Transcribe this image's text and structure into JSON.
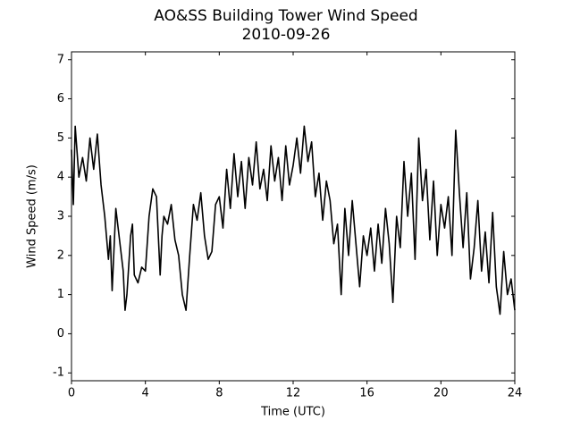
{
  "chart_data": {
    "type": "line",
    "title": "AO&SS Building Tower Wind Speed",
    "subtitle": "2010-09-26",
    "x_label": "Time (UTC)",
    "y_label": "Wind Speed (m/s)",
    "xlim": [
      0,
      24
    ],
    "xticks": [
      0,
      4,
      8,
      12,
      16,
      20,
      24
    ],
    "ylim": [
      -1.2,
      7.2
    ],
    "yticks": [
      -1,
      0,
      1,
      2,
      3,
      4,
      5,
      6,
      7
    ],
    "series": [
      {
        "name": "Wind Speed",
        "color": "#000000",
        "x": [
          0,
          0.1,
          0.2,
          0.4,
          0.6,
          0.8,
          1.0,
          1.2,
          1.4,
          1.6,
          1.8,
          2.0,
          2.1,
          2.2,
          2.4,
          2.6,
          2.8,
          2.9,
          3.0,
          3.2,
          3.3,
          3.4,
          3.6,
          3.8,
          4.0,
          4.2,
          4.4,
          4.6,
          4.8,
          4.9,
          5.0,
          5.2,
          5.4,
          5.6,
          5.8,
          6.0,
          6.2,
          6.4,
          6.6,
          6.8,
          7.0,
          7.2,
          7.4,
          7.6,
          7.8,
          8.0,
          8.2,
          8.4,
          8.6,
          8.8,
          9.0,
          9.2,
          9.4,
          9.6,
          9.8,
          10.0,
          10.2,
          10.4,
          10.6,
          10.8,
          11.0,
          11.2,
          11.4,
          11.6,
          11.8,
          12.0,
          12.2,
          12.4,
          12.6,
          12.8,
          13.0,
          13.2,
          13.4,
          13.6,
          13.8,
          14.0,
          14.2,
          14.4,
          14.6,
          14.8,
          15.0,
          15.2,
          15.4,
          15.6,
          15.8,
          16.0,
          16.2,
          16.4,
          16.6,
          16.8,
          17.0,
          17.2,
          17.4,
          17.6,
          17.8,
          18.0,
          18.2,
          18.4,
          18.6,
          18.8,
          19.0,
          19.2,
          19.4,
          19.6,
          19.8,
          20.0,
          20.2,
          20.4,
          20.6,
          20.8,
          21.0,
          21.2,
          21.4,
          21.6,
          21.8,
          22.0,
          22.2,
          22.4,
          22.6,
          22.8,
          23.0,
          23.2,
          23.4,
          23.6,
          23.8,
          24.0
        ],
        "values": [
          4.7,
          3.3,
          5.3,
          4.0,
          4.5,
          3.9,
          5.0,
          4.2,
          5.1,
          3.8,
          3.0,
          1.9,
          2.5,
          1.1,
          3.2,
          2.4,
          1.6,
          0.6,
          1.0,
          2.5,
          2.8,
          1.5,
          1.3,
          1.7,
          1.6,
          3.0,
          3.7,
          3.5,
          1.5,
          2.5,
          3.0,
          2.8,
          3.3,
          2.4,
          2.0,
          1.0,
          0.6,
          2.0,
          3.3,
          2.9,
          3.6,
          2.5,
          1.9,
          2.1,
          3.3,
          3.5,
          2.7,
          4.2,
          3.2,
          4.6,
          3.5,
          4.4,
          3.2,
          4.5,
          3.8,
          4.9,
          3.7,
          4.2,
          3.4,
          4.8,
          3.9,
          4.5,
          3.4,
          4.8,
          3.8,
          4.3,
          5.0,
          4.1,
          5.3,
          4.4,
          4.9,
          3.5,
          4.1,
          2.9,
          3.9,
          3.4,
          2.3,
          2.8,
          1.0,
          3.2,
          2.0,
          3.4,
          2.3,
          1.2,
          2.5,
          2.0,
          2.7,
          1.6,
          2.8,
          1.8,
          3.2,
          2.3,
          0.8,
          3.0,
          2.2,
          4.4,
          3.0,
          4.1,
          1.9,
          5.0,
          3.4,
          4.2,
          2.4,
          3.9,
          2.0,
          3.3,
          2.7,
          3.5,
          2.0,
          5.2,
          3.6,
          2.2,
          3.6,
          1.4,
          2.2,
          3.4,
          1.6,
          2.6,
          1.3,
          3.1,
          1.2,
          0.5,
          2.1,
          1.0,
          1.4,
          0.6
        ]
      }
    ]
  }
}
